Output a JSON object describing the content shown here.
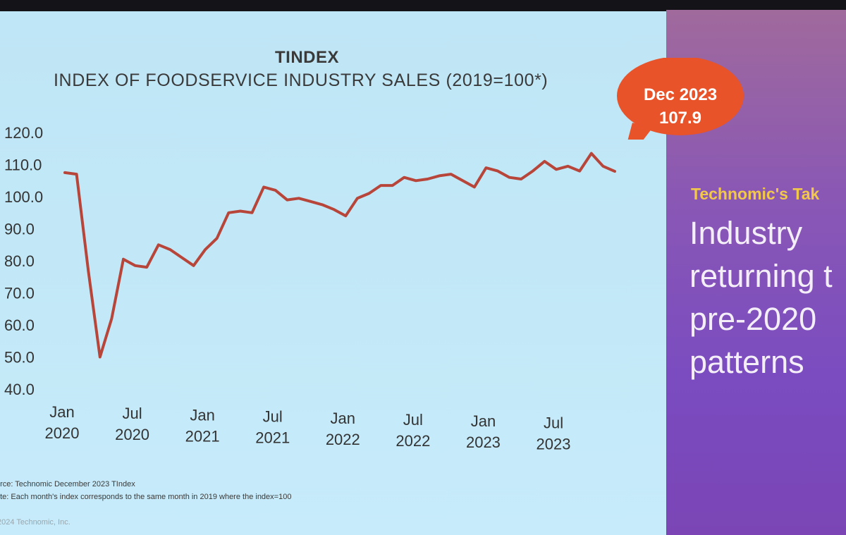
{
  "slide": {
    "title": "TINDEX",
    "subtitle": "INDEX OF FOODSERVICE INDUSTRY SALES (2019=100*)",
    "callout": {
      "line1": "Dec 2023",
      "line2": "107.9"
    },
    "source": "urce: Technomic December 2023 TIndex",
    "note": "ote: Each month's index corresponds to the same month in 2019 where the index=100",
    "copyright": "2024 Technomic, Inc.",
    "take_label": "Technomic's Tak",
    "headline_lines": [
      "Industry",
      "returning t",
      "pre-2020",
      "patterns"
    ],
    "colors": {
      "line": "#b8453a",
      "callout": "#e8532a",
      "take_label": "#f2c84a"
    }
  },
  "chart_data": {
    "type": "line",
    "title": "TINDEX",
    "subtitle": "INDEX OF FOODSERVICE INDUSTRY SALES (2019=100*)",
    "ylim": [
      40,
      120
    ],
    "yticks": [
      "120.0",
      "110.0",
      "100.0",
      "90.0",
      "80.0",
      "70.0",
      "60.0",
      "50.0",
      "40.0"
    ],
    "xticks": [
      {
        "line1": "Jan",
        "line2": "2020"
      },
      {
        "line1": "Jul",
        "line2": "2020"
      },
      {
        "line1": "Jan",
        "line2": "2021"
      },
      {
        "line1": "Jul",
        "line2": "2021"
      },
      {
        "line1": "Jan",
        "line2": "2022"
      },
      {
        "line1": "Jul",
        "line2": "2022"
      },
      {
        "line1": "Jan",
        "line2": "2023"
      },
      {
        "line1": "Jul",
        "line2": "2023"
      }
    ],
    "x": [
      "Jan 2020",
      "Feb 2020",
      "Mar 2020",
      "Apr 2020",
      "May 2020",
      "Jun 2020",
      "Jul 2020",
      "Aug 2020",
      "Sep 2020",
      "Oct 2020",
      "Nov 2020",
      "Dec 2020",
      "Jan 2021",
      "Feb 2021",
      "Mar 2021",
      "Apr 2021",
      "May 2021",
      "Jun 2021",
      "Jul 2021",
      "Aug 2021",
      "Sep 2021",
      "Oct 2021",
      "Nov 2021",
      "Dec 2021",
      "Jan 2022",
      "Feb 2022",
      "Mar 2022",
      "Apr 2022",
      "May 2022",
      "Jun 2022",
      "Jul 2022",
      "Aug 2022",
      "Sep 2022",
      "Oct 2022",
      "Nov 2022",
      "Dec 2022",
      "Jan 2023",
      "Feb 2023",
      "Mar 2023",
      "Apr 2023",
      "May 2023",
      "Jun 2023",
      "Jul 2023",
      "Aug 2023",
      "Sep 2023",
      "Oct 2023",
      "Nov 2023",
      "Dec 2023"
    ],
    "series": [
      {
        "values": [
          107.5,
          107.0,
          77.0,
          50.0,
          62.0,
          80.5,
          78.5,
          78.0,
          85.0,
          83.5,
          81.0,
          78.5,
          83.5,
          87.0,
          95.0,
          95.5,
          95.0,
          103.0,
          102.0,
          99.0,
          99.5,
          98.5,
          97.5,
          96.0,
          94.0,
          99.5,
          101.0,
          103.5,
          103.5,
          106.0,
          105.0,
          105.5,
          106.5,
          107.0,
          105.0,
          103.0,
          109.0,
          108.0,
          106.0,
          105.5,
          108.0,
          111.0,
          108.5,
          109.5,
          108.0,
          113.5,
          109.5,
          107.9
        ]
      }
    ]
  }
}
